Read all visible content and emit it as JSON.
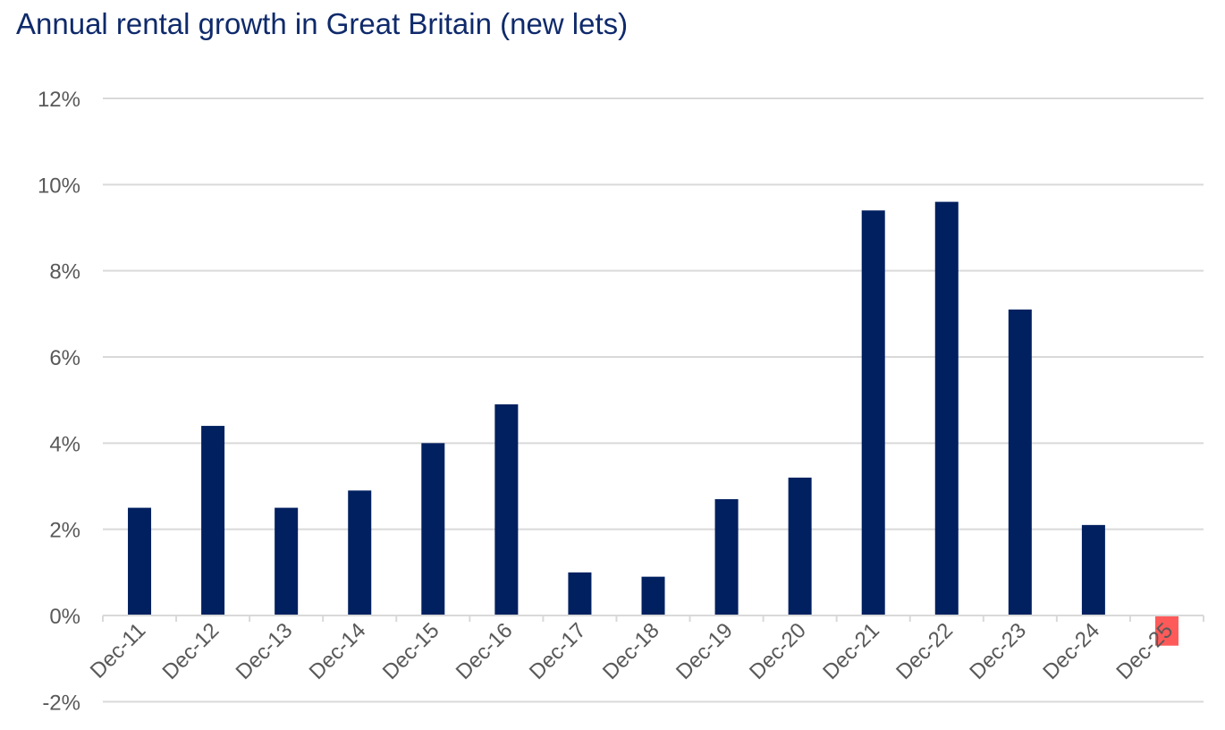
{
  "chart_data": {
    "type": "bar",
    "title": "Annual rental growth in Great Britain (new lets)",
    "xlabel": "",
    "ylabel": "",
    "ylim": [
      -2,
      12
    ],
    "yticks": [
      -2,
      0,
      2,
      4,
      6,
      8,
      10,
      12
    ],
    "ytick_labels": [
      "-2%",
      "0%",
      "2%",
      "4%",
      "6%",
      "8%",
      "10%",
      "12%"
    ],
    "categories": [
      "Dec-11",
      "Dec-12",
      "Dec-13",
      "Dec-14",
      "Dec-15",
      "Dec-16",
      "Dec-17",
      "Dec-18",
      "Dec-19",
      "Dec-20",
      "Dec-21",
      "Dec-22",
      "Dec-23",
      "Dec-24",
      "Dec-25"
    ],
    "values": [
      2.5,
      4.4,
      2.5,
      2.9,
      4.0,
      4.9,
      1.0,
      0.9,
      2.7,
      3.2,
      9.4,
      9.6,
      7.1,
      2.1,
      -0.7
    ],
    "highlight_index": 14,
    "bar_color": "#002060",
    "highlight_color": "#ff5a5a",
    "grid": true
  }
}
